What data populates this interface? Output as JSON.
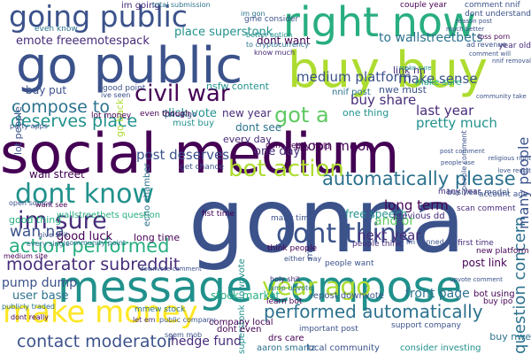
{
  "palette": {
    "dark_purple": "#440154",
    "indigo": "#472c7a",
    "blue": "#3b528b",
    "steel": "#2c728e",
    "teal": "#21918c",
    "green": "#28ae80",
    "lime": "#5ec962",
    "yellow_green": "#addc30",
    "yellow": "#fde725"
  },
  "words": [
    {
      "id": "social-medium",
      "text": "social medium",
      "color": "#440154"
    },
    {
      "id": "gonna",
      "text": "gonna",
      "color": "#3b528b"
    },
    {
      "id": "message-compose",
      "text": "message compose",
      "color": "#21918c"
    },
    {
      "id": "go-public",
      "text": "go public",
      "color": "#3b528b"
    },
    {
      "id": "buy-buy",
      "text": "buy buy",
      "color": "#addc30"
    },
    {
      "id": "right-now",
      "text": "right now",
      "color": "#28ae80"
    },
    {
      "id": "going-public",
      "text": "going public",
      "color": "#3b528b"
    },
    {
      "id": "make-money",
      "text": "make money",
      "color": "#fde725"
    },
    {
      "id": "dont-know",
      "text": "dont know",
      "color": "#21918c"
    },
    {
      "id": "dont-think",
      "text": "dont think",
      "color": "#3b528b"
    },
    {
      "id": "year-ago",
      "text": "year ago",
      "color": "#addc30"
    },
    {
      "id": "civil-war",
      "text": "civil war",
      "color": "#440154"
    },
    {
      "id": "im-sure",
      "text": "im sure",
      "color": "#472c7a"
    },
    {
      "id": "bot-action",
      "text": "bot action",
      "color": "#addc30"
    },
    {
      "id": "performed-automatically",
      "text": "performed automatically",
      "color": "#2c728e"
    },
    {
      "id": "action-performed",
      "text": "action performed",
      "color": "#28ae80"
    },
    {
      "id": "automatically-please",
      "text": "automatically please",
      "color": "#2c728e"
    },
    {
      "id": "got-a",
      "text": "got a",
      "color": "#5ec962"
    },
    {
      "id": "compose-to",
      "text": "compose to",
      "color": "#2c728e"
    },
    {
      "id": "deserves-place",
      "text": "deserves place",
      "color": "#21918c"
    },
    {
      "id": "contact-moderator",
      "text": "contact moderator",
      "color": "#3b528b"
    },
    {
      "id": "moderator-subreddit",
      "text": "moderator subreddit",
      "color": "#472c7a"
    },
    {
      "id": "wan-na",
      "text": "wan na",
      "color": "#3b528b"
    },
    {
      "id": "question-concern",
      "text": "question concern",
      "color": "#2c728e"
    },
    {
      "id": "many-people",
      "text": "many people",
      "color": "#3b528b"
    },
    {
      "id": "medium-platform",
      "text": "medium platform",
      "color": "#3b528b"
    },
    {
      "id": "make-sense",
      "text": "make sense",
      "color": "#3b528b"
    },
    {
      "id": "to-wallstreetbets",
      "text": "to wallstreetbets",
      "color": "#2c728e"
    },
    {
      "id": "place-superstonk",
      "text": "place superstonk",
      "color": "#21918c"
    },
    {
      "id": "emote-freeemotespack",
      "text": "emote freeemotespack",
      "color": "#472c7a"
    },
    {
      "id": "buy-share",
      "text": "buy share",
      "color": "#472c7a"
    },
    {
      "id": "last-year",
      "text": "last year",
      "color": "#472c7a"
    },
    {
      "id": "pretty-much",
      "text": "pretty much",
      "color": "#21918c"
    },
    {
      "id": "moon-moon",
      "text": "moon moon",
      "color": "#440154"
    },
    {
      "id": "long-term",
      "text": "long term",
      "color": "#440154"
    },
    {
      "id": "and-or",
      "text": "and or",
      "color": "#5ec962"
    },
    {
      "id": "next-year",
      "text": "next year",
      "color": "#472c7a"
    },
    {
      "id": "post-deserves",
      "text": "post deserves",
      "color": "#3b528b"
    },
    {
      "id": "dont-want",
      "text": "dont want",
      "color": "#440154"
    },
    {
      "id": "one-day",
      "text": "one day",
      "color": "#472c7a"
    },
    {
      "id": "every-day",
      "text": "every day",
      "color": "#472c7a"
    },
    {
      "id": "stock-market",
      "text": "stock market",
      "color": "#28ae80"
    },
    {
      "id": "front-page",
      "text": "front page",
      "color": "#2c728e"
    },
    {
      "id": "hedge-fund",
      "text": "hedge fund",
      "color": "#472c7a"
    },
    {
      "id": "pump-dump",
      "text": "pump dump",
      "color": "#3b528b"
    },
    {
      "id": "user-base",
      "text": "user base",
      "color": "#2c728e"
    },
    {
      "id": "good-luck",
      "text": "good luck",
      "color": "#440154"
    },
    {
      "id": "long-time",
      "text": "long time",
      "color": "#440154"
    },
    {
      "id": "wall-street",
      "text": "wall street",
      "color": "#440154"
    },
    {
      "id": "buy-put",
      "text": "buy put",
      "color": "#3b528b"
    },
    {
      "id": "click-vote",
      "text": "click vote",
      "color": "#21918c"
    },
    {
      "id": "free-speech",
      "text": "free speech",
      "color": "#21918c"
    },
    {
      "id": "post-link",
      "text": "post link",
      "color": "#440154"
    },
    {
      "id": "dont-see",
      "text": "dont see",
      "color": "#2c728e"
    },
    {
      "id": "new-year",
      "text": "new year",
      "color": "#472c7a"
    },
    {
      "id": "nsfw-content",
      "text": "nsfw content",
      "color": "#21918c"
    },
    {
      "id": "one-thing",
      "text": "one thing",
      "color": "#21918c"
    },
    {
      "id": "lot-people",
      "text": "lot people",
      "color": "#3b528b"
    },
    {
      "id": "im-going",
      "text": "im going",
      "color": "#472c7a"
    },
    {
      "id": "go-back",
      "text": "go back",
      "color": "#addc30"
    },
    {
      "id": "must-buy",
      "text": "must buy",
      "color": "#21918c"
    },
    {
      "id": "echo-chamber",
      "text": "echo chamber",
      "color": "#2c728e"
    },
    {
      "id": "good-thing",
      "text": "good thing",
      "color": "#28ae80"
    },
    {
      "id": "buy-nwe",
      "text": "buy nwe",
      "color": "#2c728e"
    },
    {
      "id": "nwe-must",
      "text": "nwe must",
      "color": "#3b528b"
    },
    {
      "id": "link-nn",
      "text": "link nn",
      "color": "#472c7a"
    },
    {
      "id": "nnif-post",
      "text": "nnif post",
      "color": "#2c728e"
    },
    {
      "id": "market-cap",
      "text": "market cap",
      "color": "#3b528b"
    },
    {
      "id": "superstonk-downvote",
      "text": "superstonk downvote",
      "color": "#21918c"
    },
    {
      "id": "wallstreetbets-question",
      "text": "wallstreetbets question",
      "color": "#28ae80"
    },
    {
      "id": "drs-care",
      "text": "drs care",
      "color": "#440154"
    },
    {
      "id": "dont-even",
      "text": "dont even",
      "color": "#440154"
    },
    {
      "id": "aaron-smartz",
      "text": "aaron smartz",
      "color": "#2c728e"
    },
    {
      "id": "local-community",
      "text": "local community",
      "color": "#3b528b"
    },
    {
      "id": "consider-investing",
      "text": "consider investing",
      "color": "#21918c"
    },
    {
      "id": "repost-downvote",
      "text": "repost downvote",
      "color": "#3b528b"
    },
    {
      "id": "company-local",
      "text": "company local",
      "color": "#440154"
    },
    {
      "id": "bot-using",
      "text": "bot using",
      "color": "#440154"
    },
    {
      "id": "make-sure",
      "text": "make sure",
      "color": "#28ae80"
    },
    {
      "id": "previous-dd",
      "text": "previous dd",
      "color": "#472c7a"
    },
    {
      "id": "scan-comment",
      "text": "scan comment",
      "color": "#472c7a"
    },
    {
      "id": "people-want",
      "text": "people want",
      "color": "#3b528b"
    },
    {
      "id": "think-people",
      "text": "think people",
      "color": "#440154"
    },
    {
      "id": "people-think",
      "text": "people think",
      "color": "#472c7a"
    },
    {
      "id": "many-time",
      "text": "many time",
      "color": "#3b528b"
    },
    {
      "id": "mmew-stock",
      "text": "mmew stock",
      "color": "#2c728e"
    },
    {
      "id": "fist-time",
      "text": "fist time",
      "color": "#440154"
    },
    {
      "id": "price-go",
      "text": "price go",
      "color": "#3b528b"
    },
    {
      "id": "even-though",
      "text": "even though",
      "color": "#440154"
    },
    {
      "id": "people-comment",
      "text": "people comment",
      "color": "#3b528b"
    },
    {
      "id": "get-chance",
      "text": "get chance",
      "color": "#3b528b"
    },
    {
      "id": "lot-money",
      "text": "lot money",
      "color": "#440154"
    },
    {
      "id": "good-point",
      "text": "good point",
      "color": "#3b528b"
    },
    {
      "id": "dont-need",
      "text": "dont need",
      "color": "#440154"
    },
    {
      "id": "buy-hold",
      "text": "buy hold",
      "color": "#440154"
    },
    {
      "id": "buy-ipo",
      "text": "buy ipo",
      "color": "#440154"
    },
    {
      "id": "learn-bot",
      "text": "learn bot",
      "color": "#440154"
    },
    {
      "id": "important-post",
      "text": "important post",
      "color": "#3b528b"
    },
    {
      "id": "support-company",
      "text": "support company",
      "color": "#3b528b"
    },
    {
      "id": "many-year",
      "text": "many year",
      "color": "#472c7a"
    },
    {
      "id": "first-time",
      "text": "first time",
      "color": "#472c7a"
    },
    {
      "id": "new-platform",
      "text": "new platform",
      "color": "#440154"
    },
    {
      "id": "business-model",
      "text": "business model",
      "color": "#3b528b"
    },
    {
      "id": "account-age",
      "text": "account age",
      "color": "#3b528b"
    },
    {
      "id": "open-source",
      "text": "open source",
      "color": "#3b528b"
    },
    {
      "id": "im-gon",
      "text": "im gon",
      "color": "#2c728e"
    },
    {
      "id": "gme-consider",
      "text": "gme consider",
      "color": "#3b528b"
    },
    {
      "id": "total-submission",
      "text": "total submission",
      "color": "#2c728e"
    },
    {
      "id": "comment-nnif",
      "text": "comment nnif",
      "color": "#3b528b"
    },
    {
      "id": "dont-understand",
      "text": "dont understand",
      "color": "#3b528b"
    },
    {
      "id": "loss-porn",
      "text": "loss porn",
      "color": "#440154"
    },
    {
      "id": "year-old",
      "text": "year old",
      "color": "#472c7a"
    },
    {
      "id": "couple-year",
      "text": "couple year",
      "color": "#440154"
    },
    {
      "id": "even-know",
      "text": "even know",
      "color": "#2c728e"
    },
    {
      "id": "party-apps",
      "text": "party apps",
      "color": "#3b528b"
    },
    {
      "id": "give-shit",
      "text": "give shit",
      "color": "#3b528b"
    },
    {
      "id": "every-single",
      "text": "every single",
      "color": "#2c728e"
    },
    {
      "id": "dont-really",
      "text": "dont really",
      "color": "#440154"
    },
    {
      "id": "publicly-traded",
      "text": "publicly traded",
      "color": "#2c728e"
    },
    {
      "id": "medium-site",
      "text": "medium site",
      "color": "#440154"
    },
    {
      "id": "seem-mob",
      "text": "seem mob",
      "color": "#3b528b"
    },
    {
      "id": "either-way",
      "text": "either way",
      "color": "#3b528b"
    },
    {
      "id": "holy-shit",
      "text": "holy shit",
      "color": "#472c7a"
    },
    {
      "id": "better-option",
      "text": "better option",
      "color": "#21918c"
    },
    {
      "id": "let-em",
      "text": "let em",
      "color": "#472c7a"
    },
    {
      "id": "amp-upvote",
      "text": "amp upvote",
      "color": "#2c728e"
    },
    {
      "id": "im-banned",
      "text": "im banned",
      "color": "#3b528b"
    },
    {
      "id": "know-much",
      "text": "know much",
      "color": "#472c7a"
    },
    {
      "id": "ad-revenue",
      "text": "ad revenue",
      "color": "#3b528b"
    },
    {
      "id": "community-point",
      "text": "community point",
      "color": "#2c728e"
    },
    {
      "id": "want-see",
      "text": "want see",
      "color": "#440154"
    },
    {
      "id": "ive-seen",
      "text": "ive seen",
      "color": "#3b528b"
    },
    {
      "id": "comment-will",
      "text": "comment will",
      "color": "#3b528b"
    },
    {
      "id": "nnif-removal",
      "text": "nnif removal",
      "color": "#3b528b"
    },
    {
      "id": "downvote-comment",
      "text": "downvote comment",
      "color": "#3b528b"
    },
    {
      "id": "upvote-comment",
      "text": "upvote comment",
      "color": "#3b528b"
    },
    {
      "id": "community-take",
      "text": "community take",
      "color": "#3b528b"
    },
    {
      "id": "religious-right",
      "text": "religious right",
      "color": "#3b528b"
    },
    {
      "id": "love-reddit",
      "text": "love reddit",
      "color": "#3b528b"
    },
    {
      "id": "post-comment",
      "text": "post comment",
      "color": "#3b528b"
    },
    {
      "id": "people-use",
      "text": "people use",
      "color": "#3b528b"
    },
    {
      "id": "make-sure-2",
      "text": "make sure",
      "color": "#21918c"
    },
    {
      "id": "much-better",
      "text": "much better",
      "color": "#3b528b"
    },
    {
      "id": "reason-post",
      "text": "reason post",
      "color": "#3b528b"
    },
    {
      "id": "to-cryptocurrency",
      "text": "to cryptocurrency",
      "color": "#2c728e"
    },
    {
      "id": "public-company",
      "text": "public company",
      "color": "#3b528b"
    }
  ]
}
